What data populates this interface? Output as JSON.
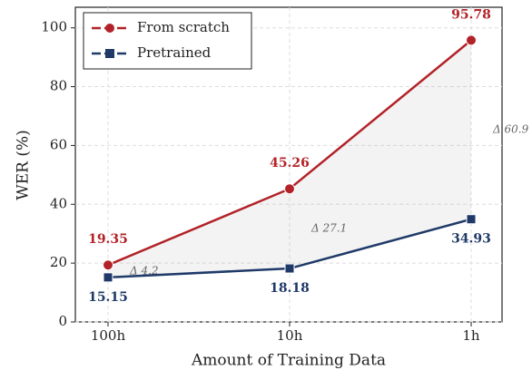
{
  "chart_data": {
    "type": "line",
    "x_label": "Amount of Training Data",
    "y_label": "WER (%)",
    "categories": [
      "100h",
      "10h",
      "1h"
    ],
    "series": [
      {
        "name": "From scratch",
        "color": "#b22228",
        "marker": "circle",
        "values": [
          19.35,
          45.26,
          95.78
        ]
      },
      {
        "name": "Pretrained",
        "color": "#1f3a68",
        "marker": "square",
        "values": [
          15.15,
          18.18,
          34.93
        ]
      }
    ],
    "annotations": [
      "Δ 4.2",
      "Δ 27.1",
      "Δ 60.9"
    ],
    "ylim": [
      0,
      107
    ],
    "yticks": [
      0,
      20,
      40,
      60,
      80,
      100
    ],
    "grid": true,
    "legend": "upper left"
  }
}
